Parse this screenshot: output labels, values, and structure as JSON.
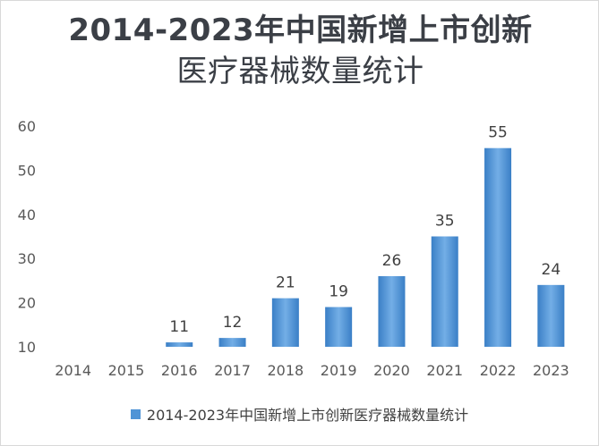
{
  "chart_data": {
    "type": "bar",
    "title_line1": "2014-2023年中国新增上市创新",
    "title_line2": "医疗器械数量统计",
    "categories": [
      "2014",
      "2015",
      "2016",
      "2017",
      "2018",
      "2019",
      "2020",
      "2021",
      "2022",
      "2023"
    ],
    "series": [
      {
        "name": "2014-2023年中国新增上市创新医疗器械数量统计",
        "values": [
          null,
          null,
          11,
          12,
          21,
          19,
          26,
          35,
          55,
          24
        ],
        "data_labels": [
          "",
          "",
          "11",
          "12",
          "21",
          "19",
          "26",
          "35",
          "55",
          "24"
        ]
      }
    ],
    "y_ticks": [
      "10",
      "20",
      "30",
      "40",
      "50",
      "60"
    ],
    "ylim": [
      10,
      60
    ],
    "grid": false,
    "legend_position": "bottom",
    "bar_color": "#4f94d6",
    "bar_color_light": "#73aee6",
    "bar_color_dark": "#3a7fc6"
  }
}
